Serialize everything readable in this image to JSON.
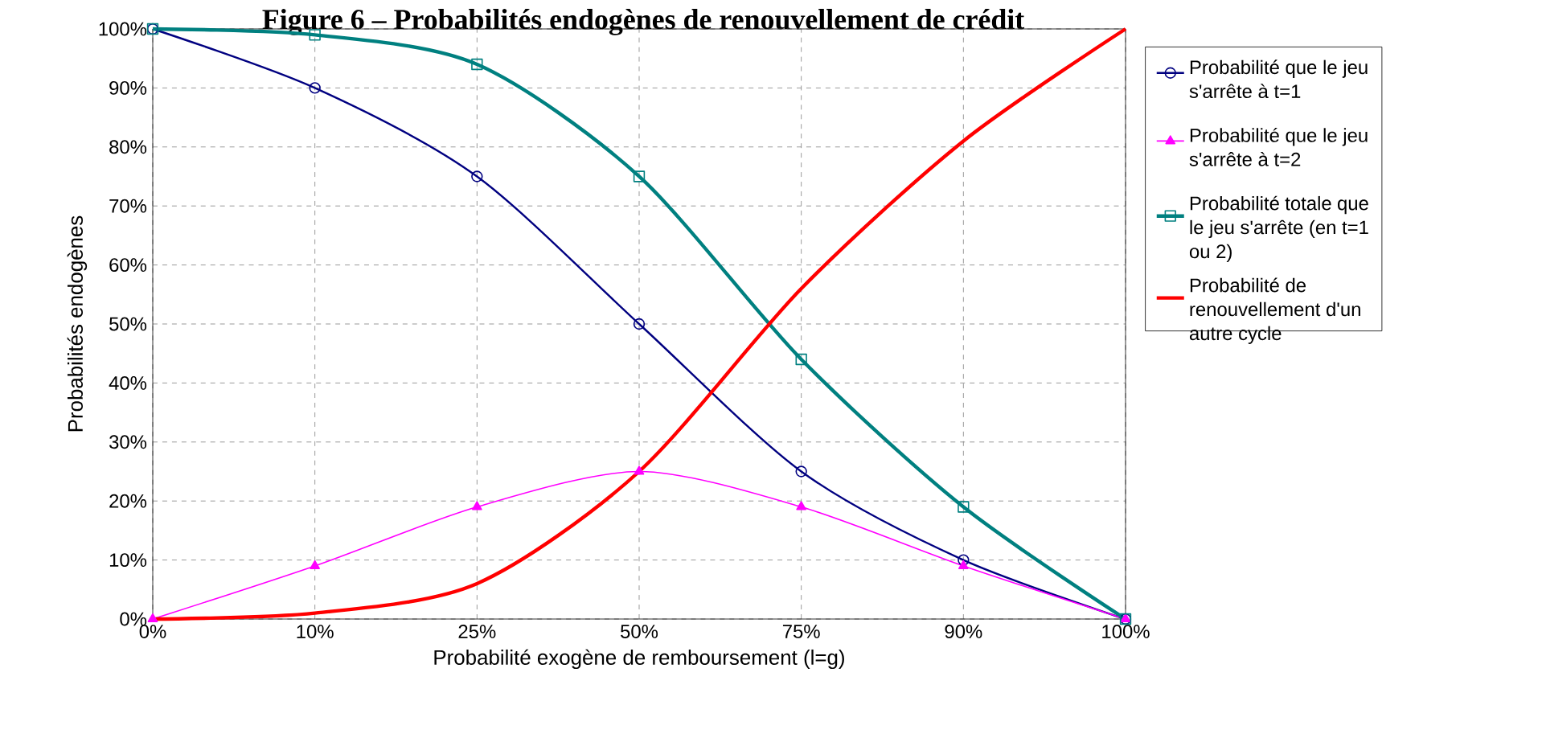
{
  "chart_data": {
    "type": "line",
    "title": "Figure 6 – Probabilités endogènes de renouvellement de crédit",
    "xlabel": "Probabilité exogène de remboursement (l=g)",
    "ylabel": "Probabilités endogènes",
    "categories": [
      "0%",
      "10%",
      "25%",
      "50%",
      "75%",
      "90%",
      "100%"
    ],
    "ylim": [
      0,
      100
    ],
    "yticks": [
      {
        "value": 0,
        "label": "0%"
      },
      {
        "value": 10,
        "label": "10%"
      },
      {
        "value": 20,
        "label": "20%"
      },
      {
        "value": 30,
        "label": "30%"
      },
      {
        "value": 40,
        "label": "40%"
      },
      {
        "value": 50,
        "label": "50%"
      },
      {
        "value": 60,
        "label": "60%"
      },
      {
        "value": 70,
        "label": "70%"
      },
      {
        "value": 80,
        "label": "80%"
      },
      {
        "value": 90,
        "label": "90%"
      },
      {
        "value": 100,
        "label": "100%"
      }
    ],
    "grid": true,
    "legend": "right",
    "line_style": "solid",
    "series": [
      {
        "name": "Probabilité que le jeu s'arrête à t=1",
        "color": "#000080",
        "marker": "circle",
        "values": [
          100,
          90,
          75,
          50,
          25,
          10,
          0
        ]
      },
      {
        "name": "Probabilité que le jeu s'arrête à t=2",
        "color": "#ff00ff",
        "marker": "triangle",
        "values": [
          0,
          9,
          19,
          25,
          19,
          9,
          0
        ]
      },
      {
        "name": "Probabilité totale que le jeu s'arrête (en t=1 ou 2)",
        "color": "#008080",
        "marker": "square",
        "values": [
          100,
          99,
          94,
          75,
          44,
          19,
          0
        ]
      },
      {
        "name": "Probabilité de renouvellement d'un autre cycle",
        "color": "#ff0000",
        "marker": "none",
        "values": [
          0,
          1,
          6,
          25,
          56,
          81,
          100
        ]
      }
    ]
  }
}
